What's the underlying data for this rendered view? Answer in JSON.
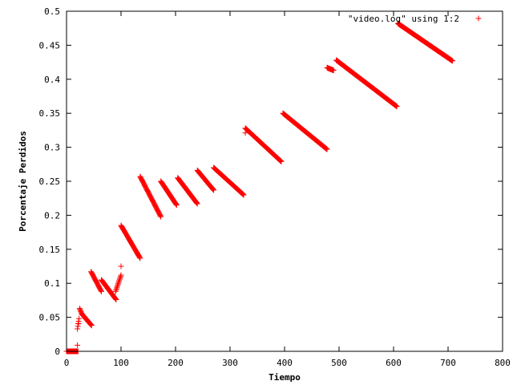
{
  "chart_data": {
    "type": "scatter",
    "xlabel": "Tiempo",
    "ylabel": "Porcentaje Perdidos",
    "xlim": [
      0,
      800
    ],
    "ylim": [
      0,
      0.5
    ],
    "x_ticks": [
      "0",
      "100",
      "200",
      "300",
      "400",
      "500",
      "600",
      "700",
      "800"
    ],
    "y_ticks": [
      "0",
      "0.05",
      "0.1",
      "0.15",
      "0.2",
      "0.25",
      "0.3",
      "0.35",
      "0.4",
      "0.45",
      "0.5"
    ],
    "grid": false,
    "legend_position": "top-right",
    "marker": "plus",
    "series": [
      {
        "name": "\"video.log\" using 1:2",
        "color": "#ff0000",
        "segments": [
          {
            "x": [
              0,
              21
            ],
            "y": [
              0,
              0
            ]
          },
          {
            "x": [
              20,
              23
            ],
            "y": [
              0.033,
              0.048
            ]
          },
          {
            "x": [
              24,
              28
            ],
            "y": [
              0.063,
              0.055
            ]
          },
          {
            "x": [
              28,
              46
            ],
            "y": [
              0.055,
              0.038
            ]
          },
          {
            "x": [
              45,
              64
            ],
            "y": [
              0.117,
              0.088
            ]
          },
          {
            "x": [
              64,
              91
            ],
            "y": [
              0.105,
              0.076
            ]
          },
          {
            "x": [
              90,
              100
            ],
            "y": [
              0.088,
              0.112
            ]
          },
          {
            "x": [
              100,
              135
            ],
            "y": [
              0.185,
              0.137
            ]
          },
          {
            "x": [
              135,
              173
            ],
            "y": [
              0.257,
              0.198
            ]
          },
          {
            "x": [
              173,
              202
            ],
            "y": [
              0.25,
              0.215
            ]
          },
          {
            "x": [
              204,
              240
            ],
            "y": [
              0.255,
              0.217
            ]
          },
          {
            "x": [
              240,
              270
            ],
            "y": [
              0.266,
              0.237
            ]
          },
          {
            "x": [
              270,
              325
            ],
            "y": [
              0.27,
              0.23
            ]
          },
          {
            "x": [
              328,
              394
            ],
            "y": [
              0.328,
              0.279
            ]
          },
          {
            "x": [
              397,
              478
            ],
            "y": [
              0.35,
              0.297
            ]
          },
          {
            "x": [
              478,
              490
            ],
            "y": [
              0.417,
              0.413
            ]
          },
          {
            "x": [
              495,
              606
            ],
            "y": [
              0.428,
              0.36
            ]
          },
          {
            "x": [
              608,
              708
            ],
            "y": [
              0.482,
              0.427
            ]
          }
        ],
        "isolated_points": [
          {
            "x": 20,
            "y": 0.009
          },
          {
            "x": 22,
            "y": 0.041
          },
          {
            "x": 100,
            "y": 0.125
          },
          {
            "x": 328,
            "y": 0.321
          }
        ]
      }
    ]
  }
}
